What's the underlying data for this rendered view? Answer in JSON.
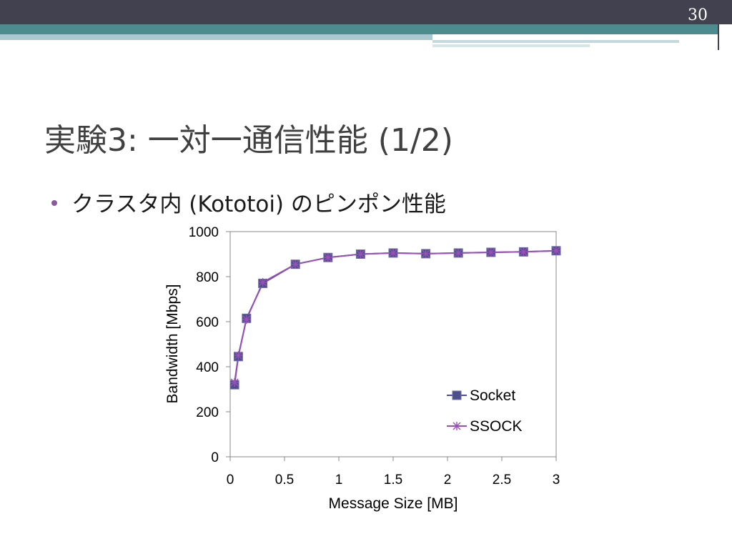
{
  "slide": {
    "number": "30",
    "title": "実験3: 一対一通信性能 (1/2)",
    "bullet": "クラスタ内 (Kototoi) のピンポン性能"
  },
  "colors": {
    "socket": "#4c4f8c",
    "ssock": "#9b4fb8"
  },
  "chart_data": {
    "type": "line",
    "xlabel": "Message Size [MB]",
    "ylabel": "Bandwidth [Mbps]",
    "xlim": [
      0,
      3
    ],
    "ylim": [
      0,
      1000
    ],
    "xticks": [
      0,
      0.5,
      1,
      1.5,
      2,
      2.5,
      3
    ],
    "xtick_labels": [
      "0",
      "0.5",
      "1",
      "1.5",
      "2",
      "2.5",
      "3"
    ],
    "yticks": [
      0,
      200,
      400,
      600,
      800,
      1000
    ],
    "ytick_labels": [
      "0",
      "200",
      "400",
      "600",
      "800",
      "1000"
    ],
    "grid": false,
    "legend": "right",
    "series": [
      {
        "name": "Socket",
        "marker": "square",
        "x": [
          0.04,
          0.075,
          0.15,
          0.3,
          0.6,
          0.9,
          1.2,
          1.5,
          1.8,
          2.1,
          2.4,
          2.7,
          3.0
        ],
        "y": [
          320,
          445,
          615,
          770,
          855,
          885,
          900,
          905,
          902,
          905,
          908,
          910,
          915
        ]
      },
      {
        "name": "SSOCK",
        "marker": "asterisk",
        "x": [
          0.04,
          0.075,
          0.15,
          0.3,
          0.6,
          0.9,
          1.2,
          1.5,
          1.8,
          2.1,
          2.4,
          2.7,
          3.0
        ],
        "y": [
          330,
          450,
          610,
          775,
          855,
          885,
          900,
          905,
          902,
          905,
          908,
          910,
          915
        ]
      }
    ]
  }
}
